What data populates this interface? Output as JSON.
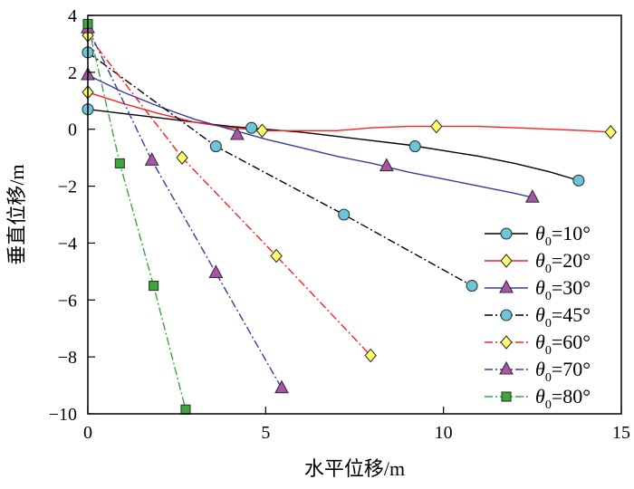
{
  "chart_data": {
    "type": "line",
    "xlabel": "水平位移/m",
    "ylabel": "垂直位移/m",
    "xlim": [
      0,
      15
    ],
    "ylim": [
      -10,
      4
    ],
    "xticks": [
      0,
      5,
      10,
      15
    ],
    "yticks": [
      -10,
      -8,
      -6,
      -4,
      -2,
      0,
      2,
      4
    ],
    "grid": false,
    "legend_position": "bottom-right",
    "series": [
      {
        "name": "θ0=10°",
        "legend_symbol": "θ",
        "legend_subscript": "0",
        "legend_value": "=10°",
        "color": "#000000",
        "dash": "solid",
        "marker": "circle",
        "marker_fill": "#6cc5d9",
        "x": [
          0,
          4.6,
          9.2,
          13.8
        ],
        "y": [
          0.7,
          0.05,
          -0.6,
          -1.8
        ],
        "curve_x": [
          0,
          1,
          2,
          3,
          4,
          5,
          6,
          7,
          8,
          9,
          10,
          11,
          12,
          13,
          13.8
        ],
        "curve_y": [
          0.7,
          0.55,
          0.4,
          0.25,
          0.1,
          0.0,
          -0.1,
          -0.25,
          -0.4,
          -0.55,
          -0.75,
          -0.95,
          -1.2,
          -1.5,
          -1.8
        ]
      },
      {
        "name": "θ0=20°",
        "legend_symbol": "θ",
        "legend_subscript": "0",
        "legend_value": "=20°",
        "color": "#ff2020",
        "dash": "solid",
        "marker": "diamond",
        "marker_fill": "#ffff66",
        "x": [
          0,
          4.9,
          9.8,
          14.7
        ],
        "y": [
          1.3,
          -0.05,
          0.1,
          -0.1
        ],
        "curve_x": [
          0,
          1,
          2,
          3,
          4,
          5,
          6,
          7,
          8,
          9,
          10,
          11,
          12,
          13,
          14,
          14.7
        ],
        "curve_y": [
          1.3,
          0.9,
          0.55,
          0.25,
          0.05,
          -0.05,
          -0.05,
          -0.05,
          0.05,
          0.1,
          0.1,
          0.1,
          0.05,
          0.0,
          -0.05,
          -0.1
        ]
      },
      {
        "name": "θ0=30°",
        "legend_symbol": "θ",
        "legend_subscript": "0",
        "legend_value": "=30°",
        "color": "#3a3aa0",
        "dash": "solid",
        "marker": "triangle",
        "marker_fill": "#a855a8",
        "x": [
          0,
          4.2,
          8.4,
          12.5
        ],
        "y": [
          1.9,
          -0.2,
          -1.3,
          -2.4
        ],
        "curve_x": [
          0,
          1,
          2,
          3,
          4,
          5,
          6,
          7,
          8,
          9,
          10,
          11,
          12,
          12.5
        ],
        "curve_y": [
          1.9,
          1.3,
          0.8,
          0.35,
          0.0,
          -0.35,
          -0.65,
          -0.95,
          -1.2,
          -1.5,
          -1.75,
          -2.0,
          -2.25,
          -2.4
        ]
      },
      {
        "name": "θ0=45°",
        "legend_symbol": "θ",
        "legend_subscript": "0",
        "legend_value": "=45°",
        "color": "#000000",
        "dash": "dashdot",
        "marker": "circle",
        "marker_fill": "#6cc5d9",
        "x": [
          0,
          3.6,
          7.2,
          10.8
        ],
        "y": [
          2.7,
          -0.6,
          -3.0,
          -5.5
        ]
      },
      {
        "name": "θ0=60°",
        "legend_symbol": "θ",
        "legend_subscript": "0",
        "legend_value": "=60°",
        "color": "#ff2020",
        "dash": "dashdot",
        "marker": "diamond",
        "marker_fill": "#ffff66",
        "x": [
          0,
          2.65,
          5.3,
          7.95
        ],
        "y": [
          3.3,
          -1.0,
          -4.45,
          -7.95
        ]
      },
      {
        "name": "θ0=70°",
        "legend_symbol": "θ",
        "legend_subscript": "0",
        "legend_value": "=70°",
        "color": "#3a3aa0",
        "dash": "dashdot",
        "marker": "triangle",
        "marker_fill": "#a855a8",
        "x": [
          0,
          1.8,
          3.6,
          5.45
        ],
        "y": [
          3.55,
          -1.1,
          -5.05,
          -9.1
        ]
      },
      {
        "name": "θ0=80°",
        "legend_symbol": "θ",
        "legend_subscript": "0",
        "legend_value": "=80°",
        "color": "#3aa83a",
        "dash": "dashdot",
        "marker": "square",
        "marker_fill": "#3aa83a",
        "x": [
          0,
          0.9,
          1.85,
          2.75
        ],
        "y": [
          3.7,
          -1.2,
          -5.5,
          -9.85
        ]
      }
    ]
  }
}
